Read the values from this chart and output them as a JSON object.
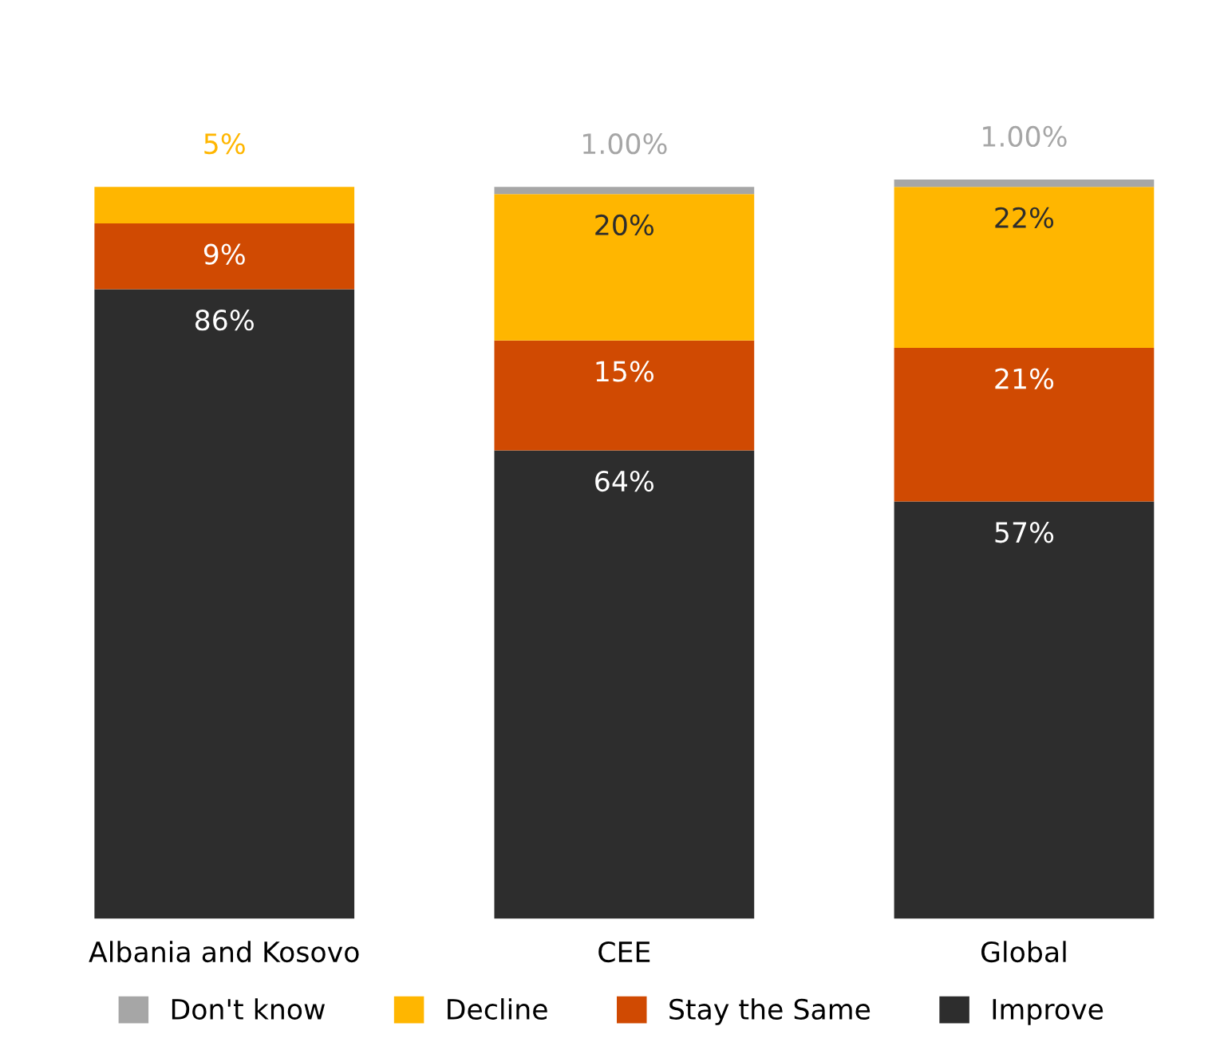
{
  "chart_data": {
    "type": "bar",
    "stacked": true,
    "categories": [
      "Albania and Kosovo",
      "CEE",
      "Global"
    ],
    "series": [
      {
        "name": "Improve",
        "color": "#2d2d2d",
        "values": [
          86,
          64,
          57
        ],
        "value_labels": [
          "86%",
          "64%",
          "57%"
        ]
      },
      {
        "name": "Stay the Same",
        "color": "#d04a02",
        "values": [
          9,
          15,
          21
        ],
        "value_labels": [
          "9%",
          "15%",
          "21%"
        ]
      },
      {
        "name": "Decline",
        "color": "#ffb600",
        "values": [
          5,
          20,
          22
        ],
        "value_labels": [
          "5%",
          "20%",
          "22%"
        ]
      },
      {
        "name": "Don't know",
        "color": "#a6a6a6",
        "values": [
          null,
          1,
          1
        ],
        "value_labels": [
          null,
          "1.00%",
          "1.00%"
        ]
      }
    ],
    "legend": "bottom",
    "grid": false
  }
}
